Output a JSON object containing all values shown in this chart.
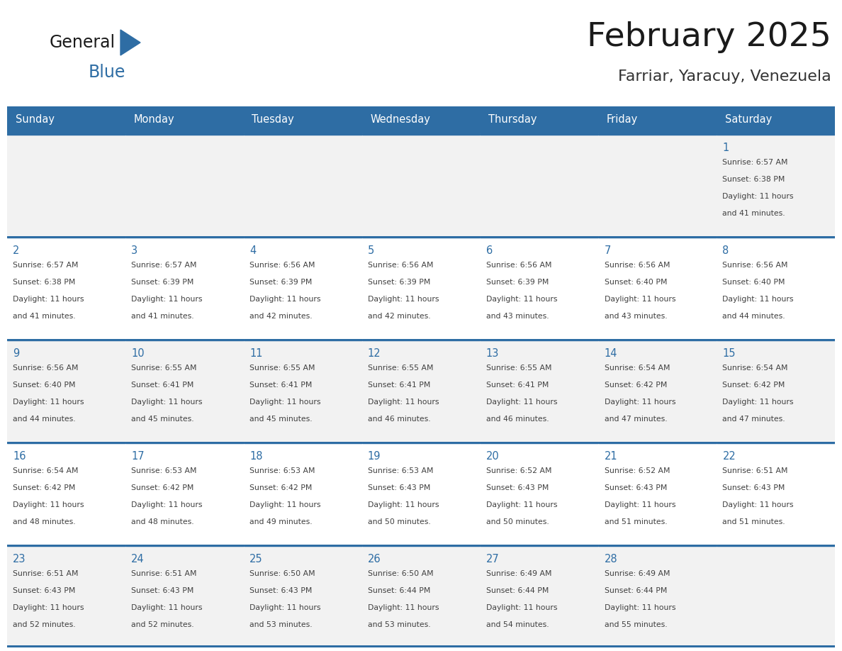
{
  "title": "February 2025",
  "subtitle": "Farriar, Yaracuy, Venezuela",
  "header_bg": "#2E6DA4",
  "header_text_color": "#FFFFFF",
  "row_bg_odd": "#F2F2F2",
  "row_bg_even": "#FFFFFF",
  "text_color": "#404040",
  "day_number_color": "#2E6DA4",
  "border_color": "#2E6DA4",
  "days_of_week": [
    "Sunday",
    "Monday",
    "Tuesday",
    "Wednesday",
    "Thursday",
    "Friday",
    "Saturday"
  ],
  "weeks": [
    [
      {
        "day": "",
        "info": ""
      },
      {
        "day": "",
        "info": ""
      },
      {
        "day": "",
        "info": ""
      },
      {
        "day": "",
        "info": ""
      },
      {
        "day": "",
        "info": ""
      },
      {
        "day": "",
        "info": ""
      },
      {
        "day": "1",
        "info": "Sunrise: 6:57 AM\nSunset: 6:38 PM\nDaylight: 11 hours\nand 41 minutes."
      }
    ],
    [
      {
        "day": "2",
        "info": "Sunrise: 6:57 AM\nSunset: 6:38 PM\nDaylight: 11 hours\nand 41 minutes."
      },
      {
        "day": "3",
        "info": "Sunrise: 6:57 AM\nSunset: 6:39 PM\nDaylight: 11 hours\nand 41 minutes."
      },
      {
        "day": "4",
        "info": "Sunrise: 6:56 AM\nSunset: 6:39 PM\nDaylight: 11 hours\nand 42 minutes."
      },
      {
        "day": "5",
        "info": "Sunrise: 6:56 AM\nSunset: 6:39 PM\nDaylight: 11 hours\nand 42 minutes."
      },
      {
        "day": "6",
        "info": "Sunrise: 6:56 AM\nSunset: 6:39 PM\nDaylight: 11 hours\nand 43 minutes."
      },
      {
        "day": "7",
        "info": "Sunrise: 6:56 AM\nSunset: 6:40 PM\nDaylight: 11 hours\nand 43 minutes."
      },
      {
        "day": "8",
        "info": "Sunrise: 6:56 AM\nSunset: 6:40 PM\nDaylight: 11 hours\nand 44 minutes."
      }
    ],
    [
      {
        "day": "9",
        "info": "Sunrise: 6:56 AM\nSunset: 6:40 PM\nDaylight: 11 hours\nand 44 minutes."
      },
      {
        "day": "10",
        "info": "Sunrise: 6:55 AM\nSunset: 6:41 PM\nDaylight: 11 hours\nand 45 minutes."
      },
      {
        "day": "11",
        "info": "Sunrise: 6:55 AM\nSunset: 6:41 PM\nDaylight: 11 hours\nand 45 minutes."
      },
      {
        "day": "12",
        "info": "Sunrise: 6:55 AM\nSunset: 6:41 PM\nDaylight: 11 hours\nand 46 minutes."
      },
      {
        "day": "13",
        "info": "Sunrise: 6:55 AM\nSunset: 6:41 PM\nDaylight: 11 hours\nand 46 minutes."
      },
      {
        "day": "14",
        "info": "Sunrise: 6:54 AM\nSunset: 6:42 PM\nDaylight: 11 hours\nand 47 minutes."
      },
      {
        "day": "15",
        "info": "Sunrise: 6:54 AM\nSunset: 6:42 PM\nDaylight: 11 hours\nand 47 minutes."
      }
    ],
    [
      {
        "day": "16",
        "info": "Sunrise: 6:54 AM\nSunset: 6:42 PM\nDaylight: 11 hours\nand 48 minutes."
      },
      {
        "day": "17",
        "info": "Sunrise: 6:53 AM\nSunset: 6:42 PM\nDaylight: 11 hours\nand 48 minutes."
      },
      {
        "day": "18",
        "info": "Sunrise: 6:53 AM\nSunset: 6:42 PM\nDaylight: 11 hours\nand 49 minutes."
      },
      {
        "day": "19",
        "info": "Sunrise: 6:53 AM\nSunset: 6:43 PM\nDaylight: 11 hours\nand 50 minutes."
      },
      {
        "day": "20",
        "info": "Sunrise: 6:52 AM\nSunset: 6:43 PM\nDaylight: 11 hours\nand 50 minutes."
      },
      {
        "day": "21",
        "info": "Sunrise: 6:52 AM\nSunset: 6:43 PM\nDaylight: 11 hours\nand 51 minutes."
      },
      {
        "day": "22",
        "info": "Sunrise: 6:51 AM\nSunset: 6:43 PM\nDaylight: 11 hours\nand 51 minutes."
      }
    ],
    [
      {
        "day": "23",
        "info": "Sunrise: 6:51 AM\nSunset: 6:43 PM\nDaylight: 11 hours\nand 52 minutes."
      },
      {
        "day": "24",
        "info": "Sunrise: 6:51 AM\nSunset: 6:43 PM\nDaylight: 11 hours\nand 52 minutes."
      },
      {
        "day": "25",
        "info": "Sunrise: 6:50 AM\nSunset: 6:43 PM\nDaylight: 11 hours\nand 53 minutes."
      },
      {
        "day": "26",
        "info": "Sunrise: 6:50 AM\nSunset: 6:44 PM\nDaylight: 11 hours\nand 53 minutes."
      },
      {
        "day": "27",
        "info": "Sunrise: 6:49 AM\nSunset: 6:44 PM\nDaylight: 11 hours\nand 54 minutes."
      },
      {
        "day": "28",
        "info": "Sunrise: 6:49 AM\nSunset: 6:44 PM\nDaylight: 11 hours\nand 55 minutes."
      },
      {
        "day": "",
        "info": ""
      }
    ]
  ]
}
